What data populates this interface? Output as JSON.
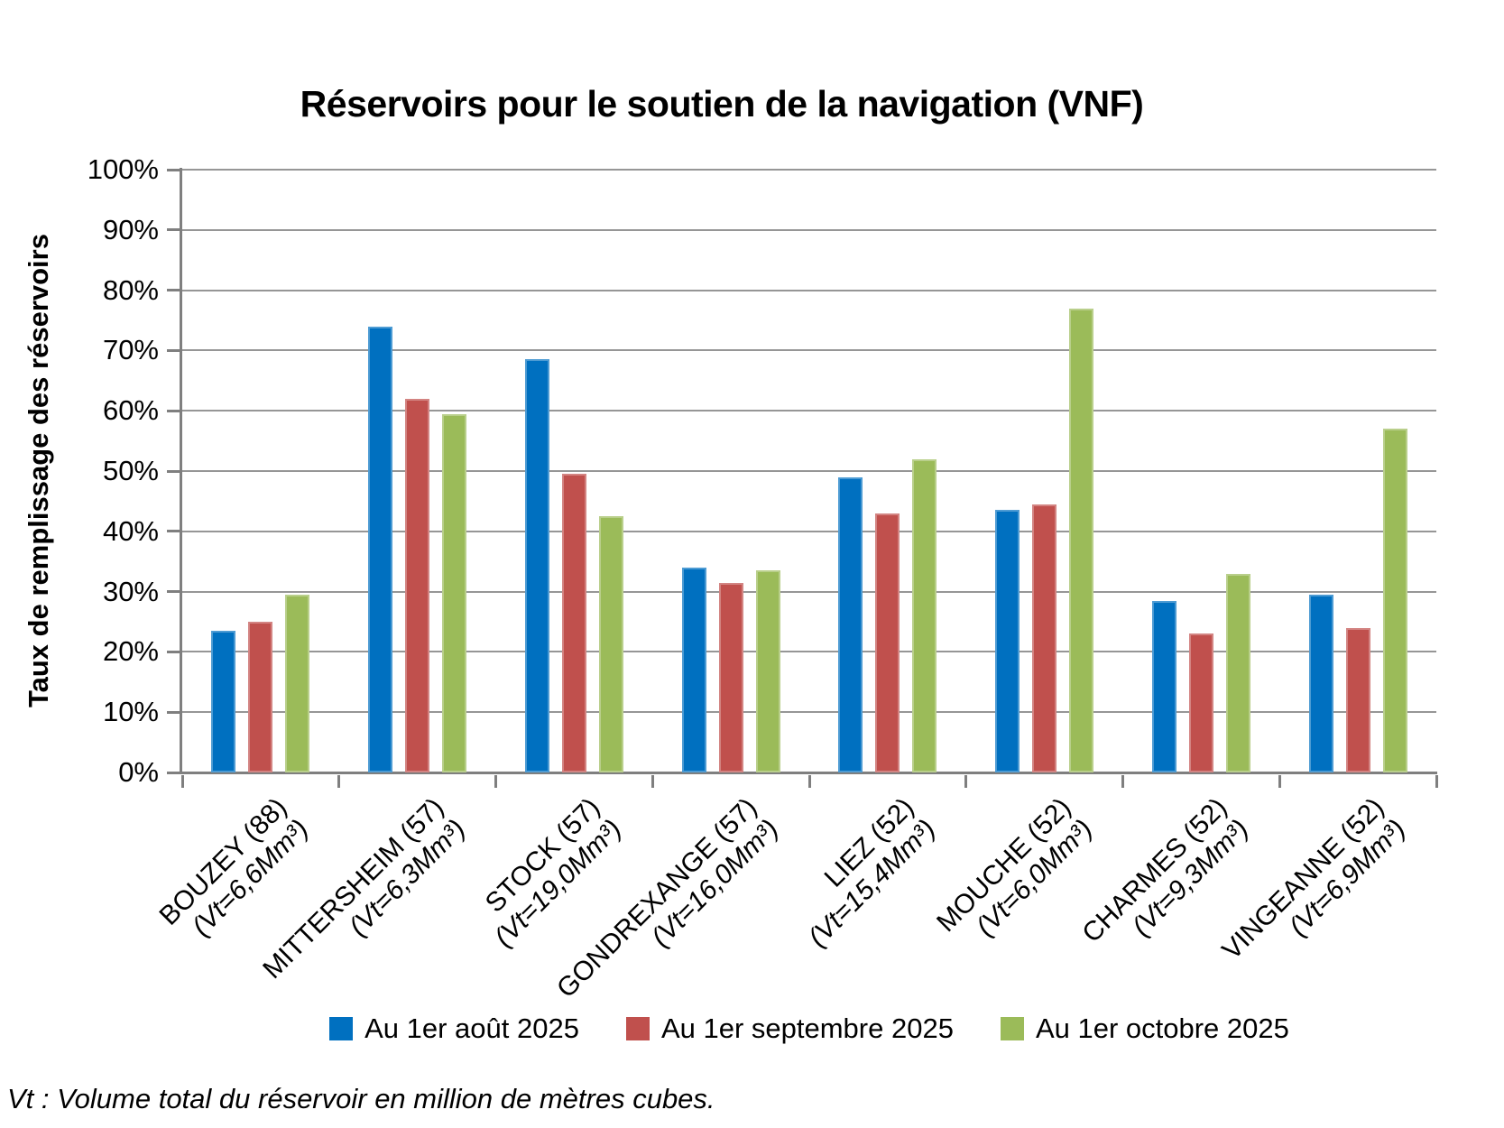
{
  "chart_data": {
    "type": "bar",
    "title": "Réservoirs pour le soutien de la navigation (VNF)",
    "ylabel": "Taux de remplissage des réservoirs",
    "xlabel": "",
    "ylim": [
      0,
      100
    ],
    "y_tick_step": 10,
    "y_tick_labels": [
      "0%",
      "10%",
      "20%",
      "30%",
      "40%",
      "50%",
      "60%",
      "70%",
      "80%",
      "90%",
      "100%"
    ],
    "grid": true,
    "legend_position": "bottom",
    "value_unit": "percent",
    "categories": [
      {
        "label": "BOUZEY (88)",
        "sublabel": "(Vt=6,6Mm³)"
      },
      {
        "label": "MITTERSHEIM (57)",
        "sublabel": "(Vt=6,3Mm³)"
      },
      {
        "label": "STOCK (57)",
        "sublabel": "(Vt=19,0Mm³)"
      },
      {
        "label": "GONDREXANGE (57)",
        "sublabel": "(Vt=16,0Mm³)"
      },
      {
        "label": "LIEZ (52)",
        "sublabel": "(Vt=15,4Mm³)"
      },
      {
        "label": "MOUCHE (52)",
        "sublabel": "(Vt=6,0Mm³)"
      },
      {
        "label": "CHARMES (52)",
        "sublabel": "(Vt=9,3Mm³)"
      },
      {
        "label": "VINGEANNE (52)",
        "sublabel": "(Vt=6,9Mm³)"
      }
    ],
    "series": [
      {
        "name": "Au 1er août 2025",
        "color": "#0070C0",
        "values": [
          23.5,
          74,
          68.5,
          34,
          49,
          43.5,
          28.5,
          29.5
        ]
      },
      {
        "name": "Au 1er septembre 2025",
        "color": "#C0504D",
        "values": [
          25,
          62,
          49.5,
          31.5,
          43,
          44.5,
          23,
          24
        ]
      },
      {
        "name": "Au 1er octobre 2025",
        "color": "#9BBB59",
        "values": [
          29.5,
          59.5,
          42.5,
          33.5,
          52,
          77,
          33,
          57
        ]
      }
    ]
  },
  "footer_note": "Vt : Volume total du réservoir en million de mètres cubes.",
  "style": {
    "gridline_color": "#969696",
    "axis_color": "#7F7F7F",
    "text_color": "#000000"
  }
}
